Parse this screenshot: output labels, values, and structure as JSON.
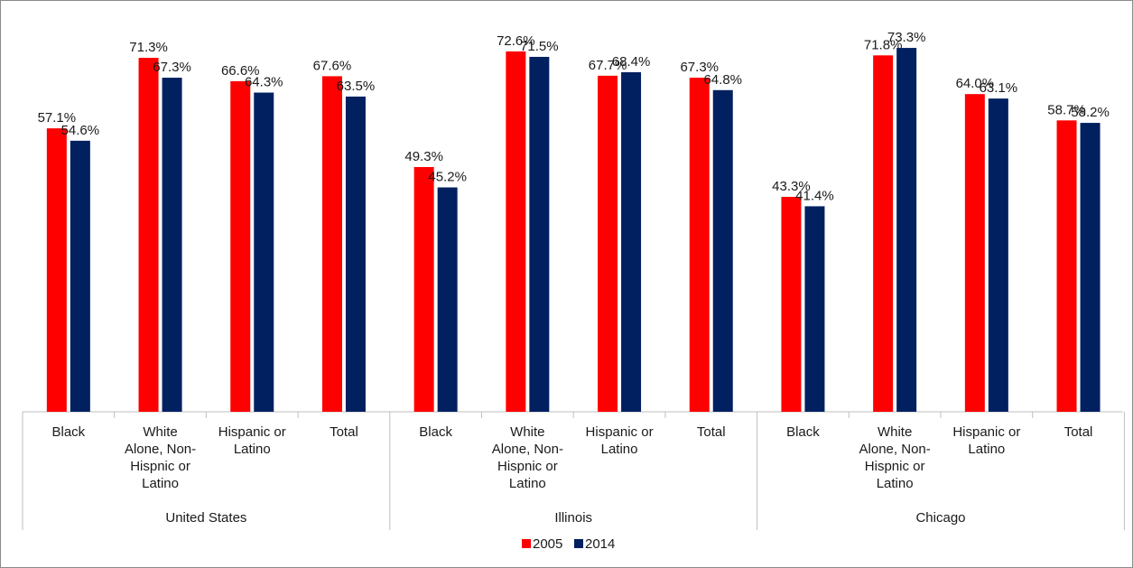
{
  "chart_data": {
    "type": "bar",
    "title": "",
    "xlabel": "",
    "ylabel": "",
    "ylim": [
      0,
      78
    ],
    "grid": false,
    "legend_position": "bottom",
    "groups": [
      {
        "name": "United States",
        "categories": [
          [
            "Black"
          ],
          [
            "White",
            "Alone, Non-",
            "Hispnic or",
            "Latino"
          ],
          [
            "Hispanic or",
            "Latino"
          ],
          [
            "Total"
          ]
        ]
      },
      {
        "name": "Illinois",
        "categories": [
          [
            "Black"
          ],
          [
            "White",
            "Alone, Non-",
            "Hispnic or",
            "Latino"
          ],
          [
            "Hispanic or",
            "Latino"
          ],
          [
            "Total"
          ]
        ]
      },
      {
        "name": "Chicago",
        "categories": [
          [
            "Black"
          ],
          [
            "White",
            "Alone, Non-",
            "Hispnic or",
            "Latino"
          ],
          [
            "Hispanic or",
            "Latino"
          ],
          [
            "Total"
          ]
        ]
      }
    ],
    "series": [
      {
        "name": "2005",
        "color": "#ff0000",
        "values": [
          57.1,
          71.3,
          66.6,
          67.6,
          49.3,
          72.6,
          67.7,
          67.3,
          43.3,
          71.8,
          64.0,
          58.7
        ],
        "labels": [
          "57.1%",
          "71.3%",
          "66.6%",
          "67.6%",
          "49.3%",
          "72.6%",
          "67.7%",
          "67.3%",
          "43.3%",
          "71.8%",
          "64.0%",
          "58.7%"
        ]
      },
      {
        "name": "2014",
        "color": "#002060",
        "values": [
          54.6,
          67.3,
          64.3,
          63.5,
          45.2,
          71.5,
          68.4,
          64.8,
          41.4,
          73.3,
          63.1,
          58.2
        ],
        "labels": [
          "54.6%",
          "67.3%",
          "64.3%",
          "63.5%",
          "45.2%",
          "71.5%",
          "68.4%",
          "64.8%",
          "41.4%",
          "73.3%",
          "63.1%",
          "58.2%"
        ]
      }
    ]
  }
}
